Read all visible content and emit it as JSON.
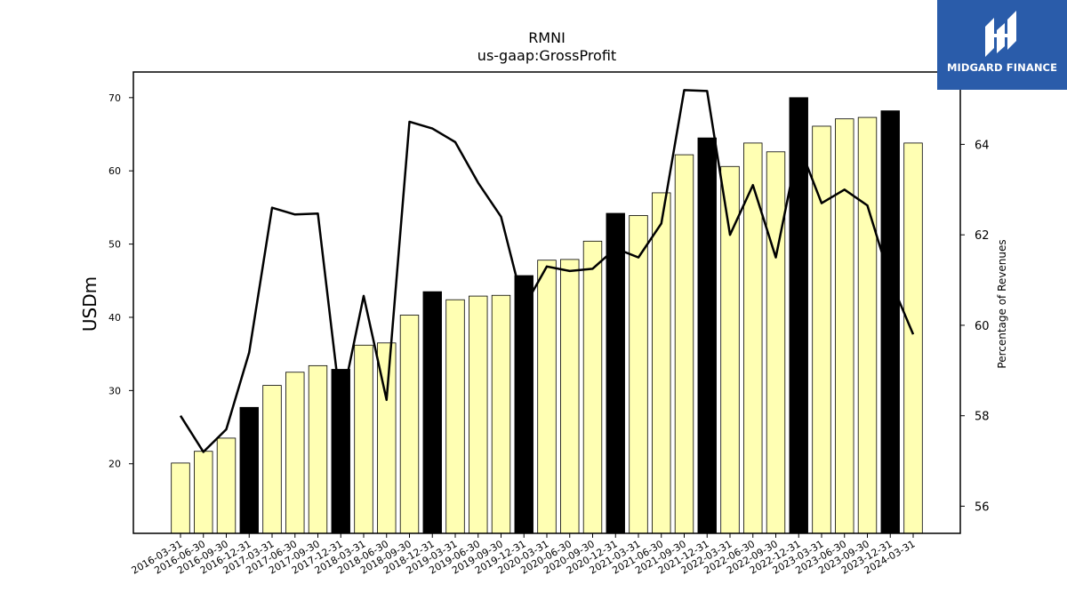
{
  "chart_data": {
    "type": "bar",
    "title": "RMNI",
    "subtitle": "us-gaap:GrossProfit",
    "ylabel": "USDm",
    "y2label": "Percentage of Revenues",
    "ylim": [
      10.5,
      73.5
    ],
    "y2lim": [
      55.4,
      65.6
    ],
    "yticks": [
      20,
      30,
      40,
      50,
      60,
      70
    ],
    "y2ticks": [
      56,
      58,
      60,
      62,
      64
    ],
    "categories": [
      "2016-03-31",
      "2016-06-30",
      "2016-09-30",
      "2016-12-31",
      "2017-03-31",
      "2017-06-30",
      "2017-09-30",
      "2017-12-31",
      "2018-03-31",
      "2018-06-30",
      "2018-09-30",
      "2018-12-31",
      "2019-03-31",
      "2019-06-30",
      "2019-09-30",
      "2019-12-31",
      "2020-03-31",
      "2020-06-30",
      "2020-09-30",
      "2020-12-31",
      "2021-03-31",
      "2021-06-30",
      "2021-09-30",
      "2021-12-31",
      "2022-03-31",
      "2022-06-30",
      "2022-09-30",
      "2022-12-31",
      "2023-03-31",
      "2023-06-30",
      "2023-09-30",
      "2023-12-31",
      "2024-03-31"
    ],
    "series": [
      {
        "type": "bar",
        "axis": "left",
        "values": [
          20.1,
          21.7,
          23.5,
          27.7,
          30.7,
          32.5,
          33.4,
          32.9,
          36.2,
          36.5,
          40.3,
          43.5,
          42.4,
          42.9,
          43.0,
          45.7,
          47.8,
          47.9,
          50.4,
          54.2,
          53.9,
          57.0,
          62.2,
          64.5,
          60.6,
          63.8,
          62.6,
          70.0,
          66.1,
          67.1,
          67.3,
          68.2,
          63.8
        ],
        "highlight": [
          false,
          false,
          false,
          true,
          false,
          false,
          false,
          true,
          false,
          false,
          false,
          true,
          false,
          false,
          false,
          true,
          false,
          false,
          false,
          true,
          false,
          false,
          false,
          true,
          false,
          false,
          false,
          true,
          false,
          false,
          false,
          true,
          false
        ],
        "color": "#ffffb3",
        "highlight_color": "#000000"
      },
      {
        "type": "line",
        "axis": "right",
        "values": [
          58.0,
          57.2,
          57.7,
          59.4,
          62.6,
          62.45,
          62.47,
          58.2,
          60.65,
          58.35,
          64.5,
          64.35,
          64.05,
          63.15,
          62.4,
          60.4,
          61.3,
          61.2,
          61.25,
          61.7,
          61.5,
          62.25,
          65.2,
          65.18,
          62.0,
          63.1,
          61.5,
          64.0,
          62.7,
          63.0,
          62.65,
          61.0,
          59.8
        ],
        "color": "#000000"
      }
    ],
    "grid": false,
    "legend": "none"
  },
  "logo": {
    "text": "MIDGARD FINANCE"
  }
}
